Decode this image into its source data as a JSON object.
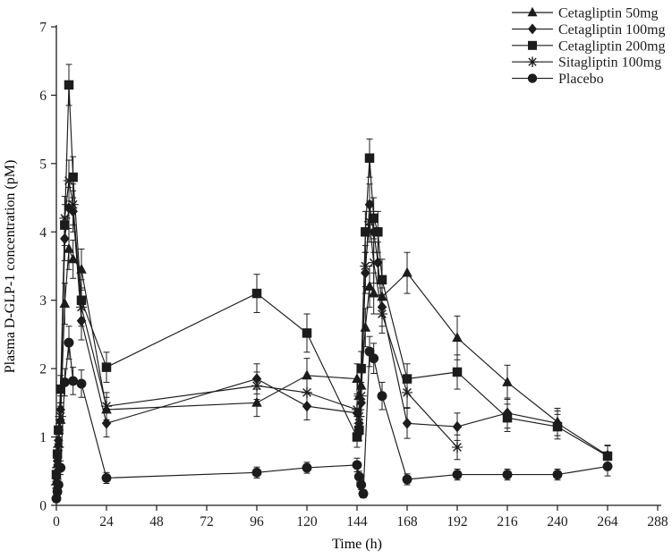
{
  "figure": {
    "background": "#ffffff",
    "ink_color": "#1c1c1c"
  },
  "chart_data": {
    "type": "line",
    "title": "",
    "xlabel": "Time (h)",
    "ylabel": "Plasma D-GLP-1 concentration (pM)",
    "xlim": [
      0,
      288
    ],
    "ylim": [
      0,
      7
    ],
    "xticks": [
      0,
      24,
      48,
      72,
      96,
      120,
      144,
      168,
      192,
      216,
      240,
      264,
      288
    ],
    "yticks": [
      0,
      1,
      2,
      3,
      4,
      5,
      6,
      7
    ],
    "grid": false,
    "error_bars": true,
    "legend_position": "top-right-inside",
    "point_format": [
      "time_h",
      "value_pM",
      "stderr_pM"
    ],
    "series": [
      {
        "name": "Cetagliptin 50mg",
        "marker": "triangle",
        "points": [
          [
            0,
            0.35,
            0.1
          ],
          [
            0.5,
            0.6,
            0.12
          ],
          [
            1,
            0.9,
            0.15
          ],
          [
            2,
            1.25,
            0.2
          ],
          [
            4,
            2.95,
            0.3
          ],
          [
            6,
            3.75,
            0.3
          ],
          [
            8,
            3.6,
            0.28
          ],
          [
            12,
            3.45,
            0.3
          ],
          [
            24,
            1.4,
            0.18
          ],
          [
            96,
            1.5,
            0.2
          ],
          [
            120,
            1.9,
            0.25
          ],
          [
            144,
            1.85,
            0.22
          ],
          [
            145,
            1.6,
            0.2
          ],
          [
            146,
            1.75,
            0.2
          ],
          [
            148,
            2.6,
            0.28
          ],
          [
            150,
            3.2,
            0.3
          ],
          [
            152,
            3.1,
            0.3
          ],
          [
            156,
            3.05,
            0.28
          ],
          [
            168,
            3.4,
            0.3
          ],
          [
            192,
            2.45,
            0.32
          ],
          [
            216,
            1.8,
            0.25
          ],
          [
            240,
            1.22,
            0.2
          ]
        ]
      },
      {
        "name": "Cetagliptin 100mg",
        "marker": "diamond",
        "points": [
          [
            0,
            0.4,
            0.1
          ],
          [
            0.5,
            0.65,
            0.12
          ],
          [
            1,
            0.95,
            0.15
          ],
          [
            2,
            1.4,
            0.2
          ],
          [
            4,
            3.9,
            0.32
          ],
          [
            6,
            4.35,
            0.3
          ],
          [
            8,
            4.3,
            0.3
          ],
          [
            12,
            2.7,
            0.28
          ],
          [
            24,
            1.2,
            0.2
          ],
          [
            96,
            1.85,
            0.22
          ],
          [
            120,
            1.45,
            0.2
          ],
          [
            144,
            1.35,
            0.2
          ],
          [
            145,
            1.2,
            0.18
          ],
          [
            146,
            1.5,
            0.2
          ],
          [
            148,
            3.4,
            0.3
          ],
          [
            150,
            4.4,
            0.3
          ],
          [
            152,
            4.0,
            0.3
          ],
          [
            154,
            3.55,
            0.3
          ],
          [
            156,
            2.9,
            0.28
          ],
          [
            168,
            1.2,
            0.22
          ],
          [
            192,
            1.15,
            0.2
          ],
          [
            216,
            1.35,
            0.22
          ],
          [
            240,
            1.2,
            0.18
          ],
          [
            264,
            0.73,
            0.15
          ]
        ]
      },
      {
        "name": "Cetagliptin 200mg",
        "marker": "square",
        "points": [
          [
            0,
            0.45,
            0.1
          ],
          [
            0.5,
            0.75,
            0.12
          ],
          [
            1,
            1.1,
            0.15
          ],
          [
            2,
            1.7,
            0.2
          ],
          [
            4,
            4.1,
            0.3
          ],
          [
            6,
            6.15,
            0.3
          ],
          [
            8,
            4.8,
            0.3
          ],
          [
            12,
            3.0,
            0.3
          ],
          [
            24,
            2.02,
            0.22
          ],
          [
            96,
            3.1,
            0.28
          ],
          [
            120,
            2.52,
            0.28
          ],
          [
            144,
            1.0,
            0.15
          ],
          [
            145,
            1.1,
            0.15
          ],
          [
            146,
            2.0,
            0.25
          ],
          [
            148,
            4.0,
            0.3
          ],
          [
            150,
            5.08,
            0.28
          ],
          [
            152,
            4.2,
            0.3
          ],
          [
            154,
            4.0,
            0.3
          ],
          [
            156,
            3.3,
            0.3
          ],
          [
            168,
            1.85,
            0.22
          ],
          [
            192,
            1.95,
            0.25
          ],
          [
            216,
            1.28,
            0.2
          ],
          [
            240,
            1.15,
            0.18
          ],
          [
            264,
            0.72,
            0.15
          ]
        ]
      },
      {
        "name": "Sitagliptin 100mg",
        "marker": "asterisk",
        "points": [
          [
            0,
            0.3,
            0.1
          ],
          [
            0.5,
            0.55,
            0.12
          ],
          [
            1,
            0.85,
            0.15
          ],
          [
            2,
            1.3,
            0.2
          ],
          [
            4,
            4.2,
            0.32
          ],
          [
            6,
            4.75,
            0.3
          ],
          [
            8,
            4.4,
            0.3
          ],
          [
            12,
            2.9,
            0.28
          ],
          [
            24,
            1.45,
            0.2
          ],
          [
            96,
            1.75,
            0.2
          ],
          [
            120,
            1.65,
            0.2
          ],
          [
            144,
            1.4,
            0.2
          ],
          [
            145,
            1.3,
            0.18
          ],
          [
            146,
            1.6,
            0.2
          ],
          [
            148,
            3.5,
            0.3
          ],
          [
            150,
            4.15,
            0.3
          ],
          [
            152,
            3.55,
            0.3
          ],
          [
            156,
            2.8,
            0.28
          ],
          [
            168,
            1.65,
            0.22
          ],
          [
            192,
            0.85,
            0.18
          ]
        ]
      },
      {
        "name": "Placebo",
        "marker": "circle",
        "points": [
          [
            0,
            0.1,
            0.05
          ],
          [
            0.5,
            0.2,
            0.06
          ],
          [
            1,
            0.3,
            0.08
          ],
          [
            2,
            0.55,
            0.1
          ],
          [
            4,
            1.8,
            0.2
          ],
          [
            6,
            2.38,
            0.24
          ],
          [
            8,
            1.82,
            0.2
          ],
          [
            12,
            1.78,
            0.2
          ],
          [
            24,
            0.4,
            0.08
          ],
          [
            96,
            0.48,
            0.08
          ],
          [
            120,
            0.55,
            0.08
          ],
          [
            144,
            0.59,
            0.1
          ],
          [
            145,
            0.42,
            0.08
          ],
          [
            146,
            0.3,
            0.07
          ],
          [
            147,
            0.17,
            0.06
          ],
          [
            150,
            2.25,
            0.22
          ],
          [
            152,
            2.15,
            0.22
          ],
          [
            156,
            1.6,
            0.2
          ],
          [
            168,
            0.38,
            0.08
          ],
          [
            192,
            0.45,
            0.08
          ],
          [
            216,
            0.45,
            0.08
          ],
          [
            240,
            0.45,
            0.08
          ],
          [
            264,
            0.57,
            0.14
          ]
        ]
      }
    ]
  }
}
